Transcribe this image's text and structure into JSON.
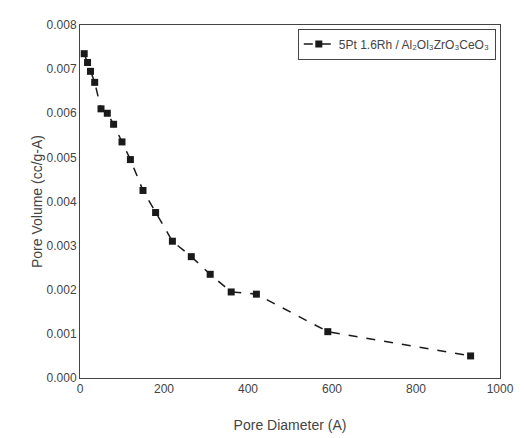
{
  "chart_data": {
    "type": "line",
    "x": [
      10,
      18,
      25,
      35,
      50,
      65,
      80,
      100,
      120,
      150,
      180,
      220,
      265,
      310,
      360,
      420,
      590,
      930
    ],
    "series": [
      {
        "name": "5Pt 1.6Rh / Al₂Ol₃ZrO₃CeO₃",
        "color": "#1a1a1a",
        "marker": "square",
        "line_style": "dashed",
        "values": [
          0.00735,
          0.00715,
          0.00695,
          0.0067,
          0.0061,
          0.006,
          0.00575,
          0.00535,
          0.00495,
          0.00425,
          0.00375,
          0.0031,
          0.00275,
          0.00235,
          0.00195,
          0.0019,
          0.00105,
          0.0005
        ]
      }
    ],
    "xlabel": "Pore Diameter (A)",
    "ylabel": "Pore Volume (cc/g-A)",
    "xlim": [
      0,
      1000
    ],
    "ylim": [
      0.0,
      0.008
    ],
    "xticks": [
      0,
      200,
      400,
      600,
      800,
      1000
    ],
    "yticks": [
      {
        "value": 0,
        "label": "0.000"
      },
      0.001,
      0.002,
      0.003,
      0.004,
      0.005,
      0.006,
      0.007,
      0.008
    ],
    "grid": false,
    "legend": "upper right"
  }
}
